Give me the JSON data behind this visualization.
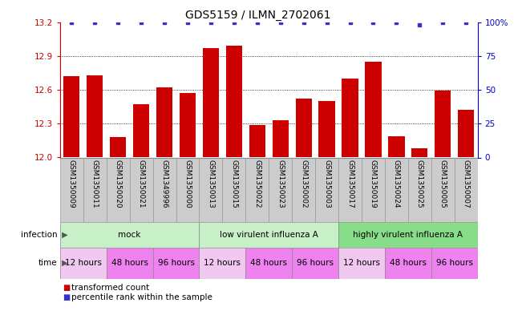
{
  "title": "GDS5159 / ILMN_2702061",
  "samples": [
    "GSM1350009",
    "GSM1350011",
    "GSM1350020",
    "GSM1350021",
    "GSM1349996",
    "GSM1350000",
    "GSM1350013",
    "GSM1350015",
    "GSM1350022",
    "GSM1350023",
    "GSM1350002",
    "GSM1350003",
    "GSM1350017",
    "GSM1350019",
    "GSM1350024",
    "GSM1350025",
    "GSM1350005",
    "GSM1350007"
  ],
  "bar_values": [
    12.72,
    12.73,
    12.18,
    12.47,
    12.62,
    12.57,
    12.97,
    12.99,
    12.29,
    12.33,
    12.52,
    12.5,
    12.7,
    12.85,
    12.19,
    12.08,
    12.59,
    12.42
  ],
  "percentile_values": [
    100,
    100,
    100,
    100,
    100,
    100,
    100,
    100,
    100,
    100,
    100,
    100,
    100,
    100,
    100,
    98,
    100,
    100
  ],
  "y_min": 12.0,
  "y_max": 13.2,
  "y_ticks": [
    12.0,
    12.3,
    12.6,
    12.9,
    13.2
  ],
  "right_y_ticks": [
    0,
    25,
    50,
    75,
    100
  ],
  "right_y_labels": [
    "0",
    "25",
    "50",
    "75",
    "100%"
  ],
  "bar_color": "#cc0000",
  "percentile_color": "#3333cc",
  "left_tick_color": "#cc0000",
  "right_tick_color": "#0000cc",
  "infection_groups": [
    {
      "label": "mock",
      "start": 0,
      "end": 6,
      "color": "#c8f0c8"
    },
    {
      "label": "low virulent influenza A",
      "start": 6,
      "end": 12,
      "color": "#c8f0c8"
    },
    {
      "label": "highly virulent influenza A",
      "start": 12,
      "end": 18,
      "color": "#88dd88"
    }
  ],
  "time_groups": [
    {
      "label": "12 hours",
      "start": 0,
      "end": 2,
      "color": "#f0c8f0"
    },
    {
      "label": "48 hours",
      "start": 2,
      "end": 4,
      "color": "#ee82ee"
    },
    {
      "label": "96 hours",
      "start": 4,
      "end": 6,
      "color": "#ee82ee"
    },
    {
      "label": "12 hours",
      "start": 6,
      "end": 8,
      "color": "#f0c8f0"
    },
    {
      "label": "48 hours",
      "start": 8,
      "end": 10,
      "color": "#ee82ee"
    },
    {
      "label": "96 hours",
      "start": 10,
      "end": 12,
      "color": "#ee82ee"
    },
    {
      "label": "12 hours",
      "start": 12,
      "end": 14,
      "color": "#f0c8f0"
    },
    {
      "label": "48 hours",
      "start": 14,
      "end": 16,
      "color": "#ee82ee"
    },
    {
      "label": "96 hours",
      "start": 16,
      "end": 18,
      "color": "#ee82ee"
    }
  ],
  "sample_box_color": "#cccccc",
  "grid_color": "black",
  "grid_linestyle": ":",
  "grid_linewidth": 0.6,
  "title_fontsize": 10,
  "bar_tick_fontsize": 7.5,
  "sample_fontsize": 6.5,
  "annot_fontsize": 7.5,
  "legend_fontsize": 7.5
}
